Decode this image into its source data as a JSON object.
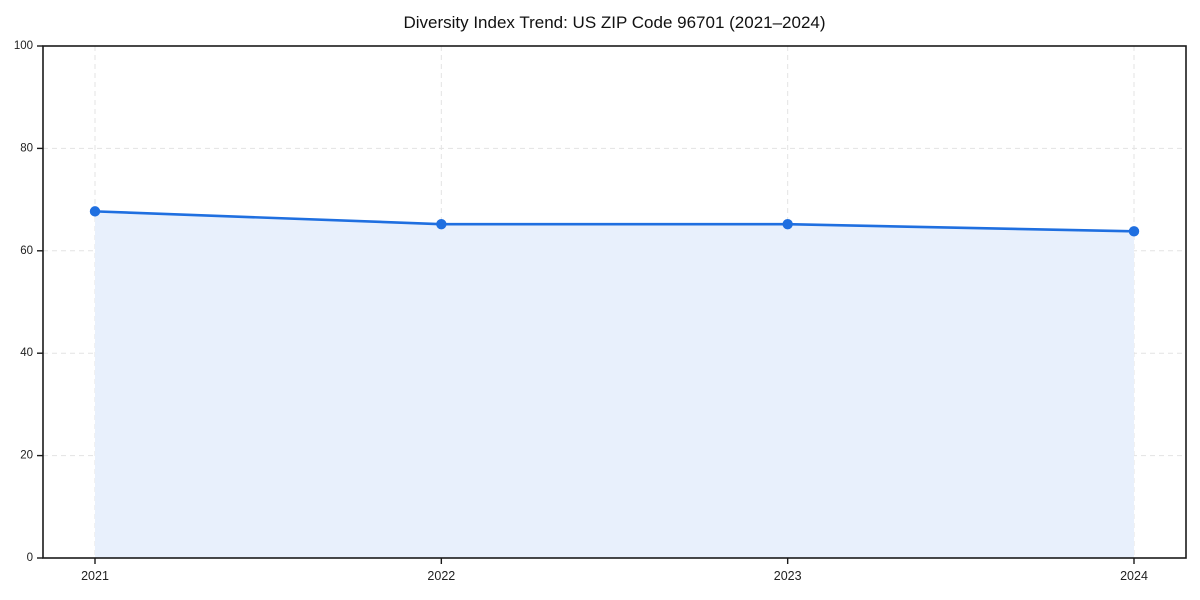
{
  "chart_data": {
    "type": "area",
    "title": "Diversity Index Trend: US ZIP Code 96701 (2021–2024)",
    "xlabel": "",
    "ylabel": "",
    "x_labels": [
      "2021",
      "2022",
      "2023",
      "2024"
    ],
    "series": [
      {
        "name": "Diversity Index",
        "values": [
          67.7,
          65.2,
          65.2,
          63.8
        ]
      }
    ],
    "ylim": [
      0,
      100
    ],
    "yticks": [
      0,
      20,
      40,
      60,
      80,
      100
    ],
    "grid": "both-dashed",
    "legend_position": "none",
    "colors": {
      "line": "#1f6fe0",
      "marker": "#1f6fe0",
      "fill": "#e8f0fc",
      "grid": "#e3e3e3",
      "spine": "#1a1a1a",
      "tick_text": "#222222",
      "title_text": "#111111",
      "background": "#ffffff"
    }
  }
}
